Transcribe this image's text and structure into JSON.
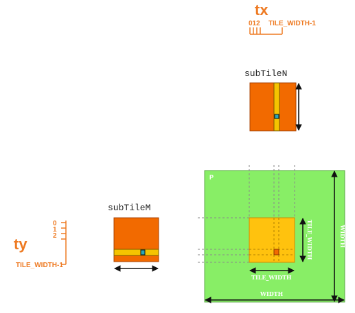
{
  "labels": {
    "tx": "tx",
    "tx_ticks": "012",
    "tx_max": "TILE_WIDTH-1",
    "ty": "ty",
    "ty_tick_0": "0",
    "ty_tick_1": "1",
    "ty_tick_2": "2",
    "ty_max": "TILE_WIDTH-1",
    "subtile_n": "subTileN",
    "subtile_m": "subTileM",
    "p": "P",
    "tile_width_bottom": "TILE_WIDTH",
    "tile_width_side": "TILE_WIDTH",
    "width_bottom": "WIDTH",
    "width_side": "WIDTH"
  },
  "colors": {
    "orange_label": "#ee7a22",
    "tile_orange": "#f26a00",
    "strip_yellow": "#f5c400",
    "p_green": "#88ee66",
    "tile_gold": "#ffc20e",
    "arrow_black": "#111111",
    "dash_gray": "#8a8a8a",
    "cell_blue": "#2aa7b8"
  }
}
